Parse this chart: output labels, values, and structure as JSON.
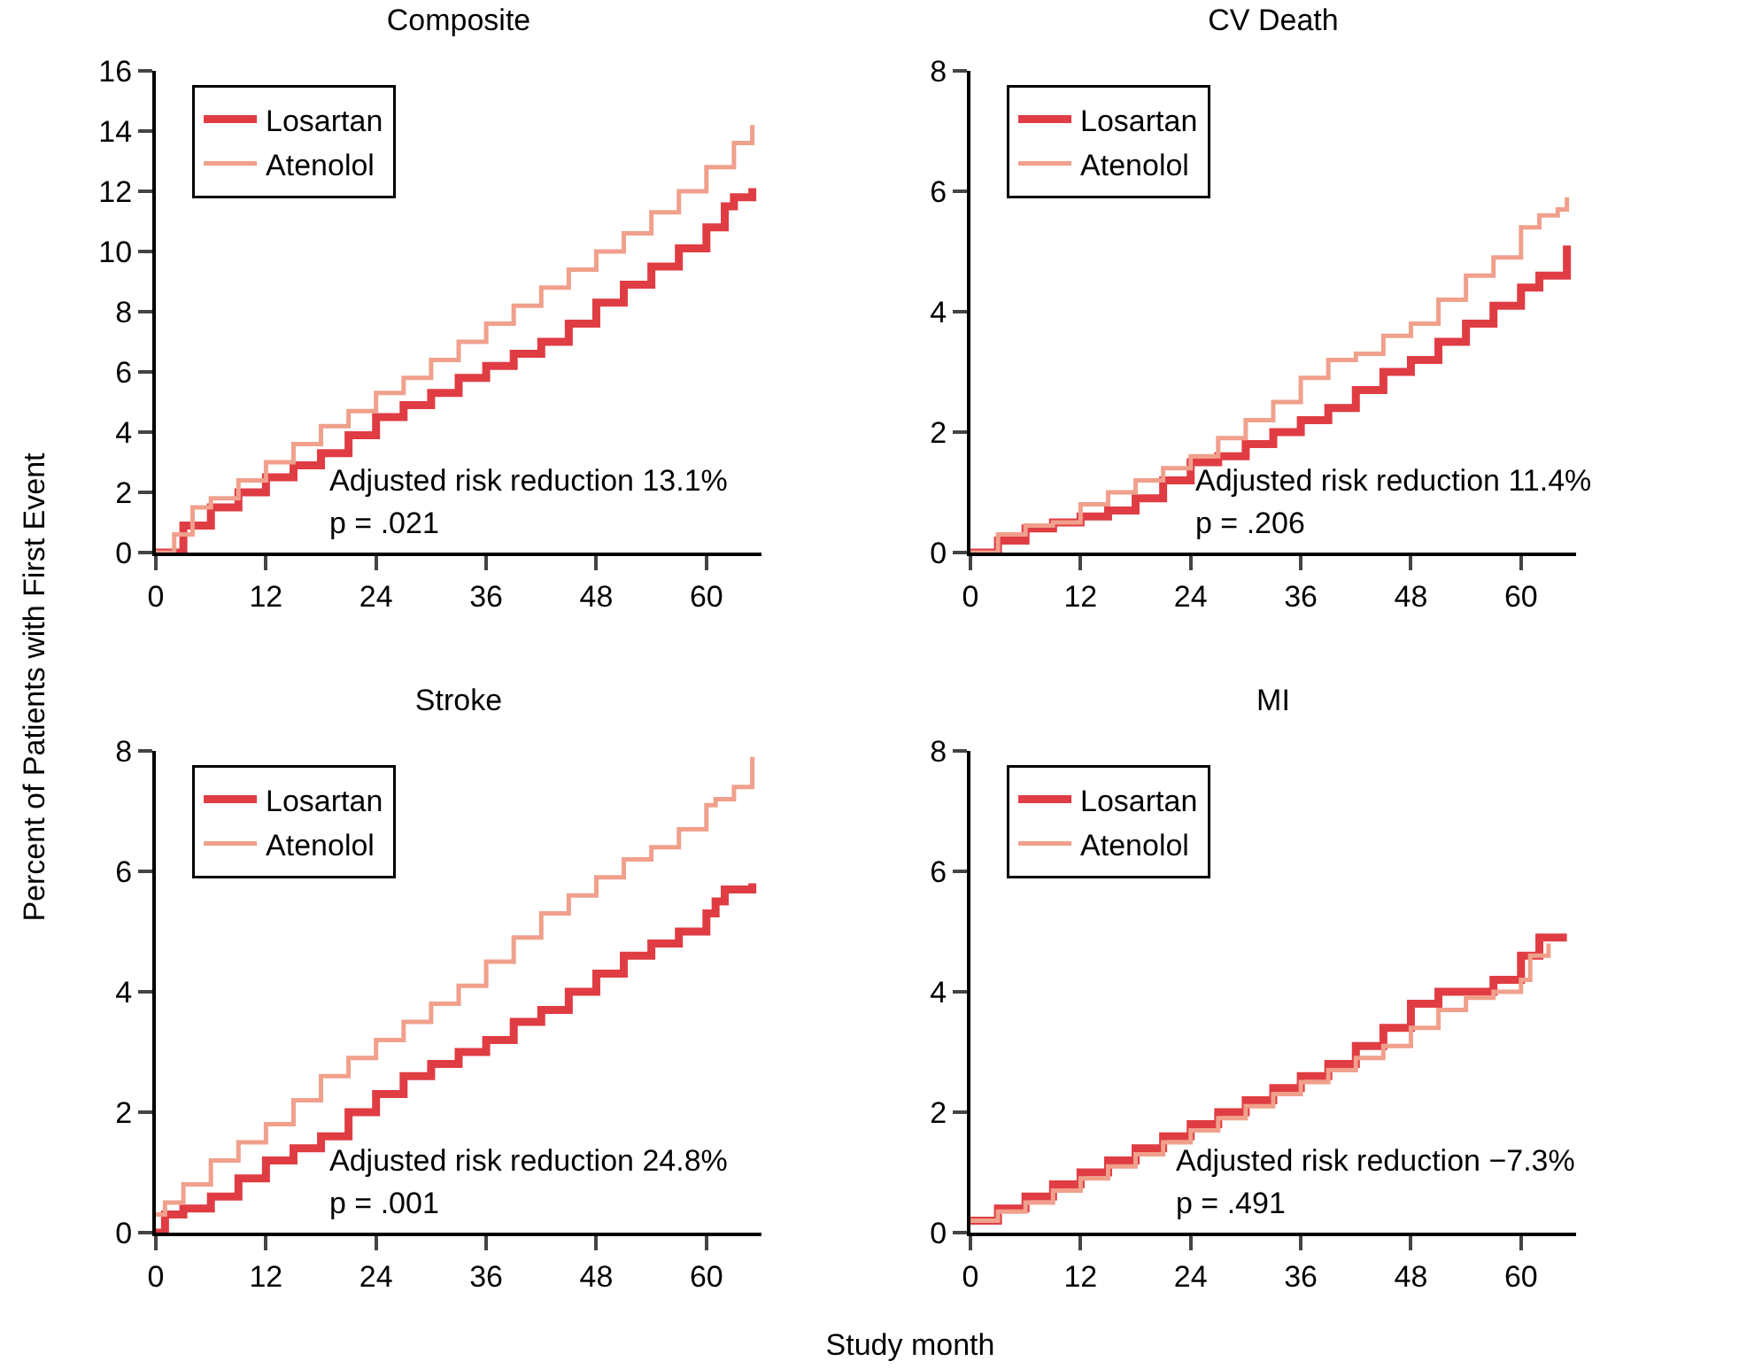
{
  "chart_data": [
    {
      "type": "step",
      "title": "Composite",
      "ylabel": "Percent of Patients with First Event",
      "xlim": [
        0,
        66
      ],
      "xticks": [
        0,
        12,
        24,
        36,
        48,
        60
      ],
      "ylim": [
        0,
        16
      ],
      "yticks": [
        0,
        2,
        4,
        6,
        8,
        10,
        12,
        14,
        16
      ],
      "grid": false,
      "legend": "top left",
      "annotations": [
        "Adjusted risk reduction 13.1%",
        "p = .021"
      ],
      "series": [
        {
          "name": "Losartan",
          "color": "#e03c44",
          "x": [
            0,
            3,
            6,
            9,
            12,
            15,
            18,
            21,
            24,
            27,
            30,
            33,
            36,
            39,
            42,
            45,
            48,
            51,
            54,
            57,
            60,
            62,
            63,
            65
          ],
          "values": [
            0,
            0.9,
            1.5,
            2.0,
            2.5,
            2.9,
            3.3,
            3.9,
            4.5,
            4.9,
            5.3,
            5.8,
            6.2,
            6.6,
            7.0,
            7.6,
            8.3,
            8.9,
            9.5,
            10.1,
            10.8,
            11.5,
            11.8,
            12.1
          ]
        },
        {
          "name": "Atenolol",
          "color": "#f0a08c",
          "x": [
            0,
            2,
            4,
            6,
            9,
            12,
            15,
            18,
            21,
            24,
            27,
            30,
            33,
            36,
            39,
            42,
            45,
            48,
            51,
            54,
            57,
            60,
            63,
            65
          ],
          "values": [
            0,
            0.6,
            1.5,
            1.8,
            2.4,
            3.0,
            3.6,
            4.2,
            4.7,
            5.3,
            5.8,
            6.4,
            7.0,
            7.6,
            8.2,
            8.8,
            9.4,
            10.0,
            10.6,
            11.3,
            12.0,
            12.8,
            13.6,
            14.2
          ]
        }
      ]
    },
    {
      "type": "step",
      "title": "CV Death",
      "xlim": [
        0,
        66
      ],
      "xticks": [
        0,
        12,
        24,
        36,
        48,
        60
      ],
      "ylim": [
        0,
        8
      ],
      "yticks": [
        0,
        2,
        4,
        6,
        8
      ],
      "grid": false,
      "legend": "top left",
      "annotations": [
        "Adjusted risk reduction 11.4%",
        "p = .206"
      ],
      "series": [
        {
          "name": "Losartan",
          "color": "#e03c44",
          "x": [
            0,
            3,
            6,
            9,
            12,
            15,
            18,
            21,
            24,
            27,
            30,
            33,
            36,
            39,
            42,
            45,
            48,
            51,
            54,
            57,
            60,
            62,
            64,
            65
          ],
          "values": [
            0,
            0.2,
            0.4,
            0.5,
            0.6,
            0.7,
            0.9,
            1.2,
            1.5,
            1.6,
            1.8,
            2.0,
            2.2,
            2.4,
            2.7,
            3.0,
            3.2,
            3.5,
            3.8,
            4.1,
            4.4,
            4.6,
            4.6,
            5.1
          ]
        },
        {
          "name": "Atenolol",
          "color": "#f0a08c",
          "x": [
            0,
            3,
            6,
            9,
            12,
            15,
            18,
            21,
            24,
            27,
            30,
            33,
            36,
            39,
            42,
            45,
            48,
            51,
            54,
            57,
            60,
            62,
            64,
            65
          ],
          "values": [
            0,
            0.3,
            0.45,
            0.5,
            0.8,
            1.0,
            1.2,
            1.4,
            1.6,
            1.9,
            2.2,
            2.5,
            2.9,
            3.2,
            3.3,
            3.6,
            3.8,
            4.2,
            4.6,
            4.9,
            5.4,
            5.6,
            5.7,
            5.9
          ]
        }
      ]
    },
    {
      "type": "step",
      "title": "Stroke",
      "xlim": [
        0,
        66
      ],
      "xticks": [
        0,
        12,
        24,
        36,
        48,
        60
      ],
      "ylim": [
        0,
        8
      ],
      "yticks": [
        0,
        2,
        4,
        6,
        8
      ],
      "grid": false,
      "legend": "top left",
      "annotations": [
        "Adjusted risk reduction 24.8%",
        "p = .001"
      ],
      "series": [
        {
          "name": "Losartan",
          "color": "#e03c44",
          "x": [
            0,
            1,
            3,
            6,
            9,
            12,
            15,
            18,
            21,
            24,
            27,
            30,
            33,
            36,
            39,
            42,
            45,
            48,
            51,
            54,
            57,
            60,
            61,
            62,
            65
          ],
          "values": [
            0,
            0.3,
            0.4,
            0.6,
            0.9,
            1.2,
            1.4,
            1.6,
            2.0,
            2.3,
            2.6,
            2.8,
            3.0,
            3.2,
            3.5,
            3.7,
            4.0,
            4.3,
            4.6,
            4.8,
            5.0,
            5.3,
            5.5,
            5.7,
            5.8
          ]
        },
        {
          "name": "Atenolol",
          "color": "#f0a08c",
          "x": [
            0,
            1,
            3,
            6,
            9,
            12,
            15,
            18,
            21,
            24,
            27,
            30,
            33,
            36,
            39,
            42,
            45,
            48,
            51,
            54,
            57,
            60,
            61,
            63,
            65
          ],
          "values": [
            0.3,
            0.5,
            0.8,
            1.2,
            1.5,
            1.8,
            2.2,
            2.6,
            2.9,
            3.2,
            3.5,
            3.8,
            4.1,
            4.5,
            4.9,
            5.3,
            5.6,
            5.9,
            6.2,
            6.4,
            6.7,
            7.1,
            7.2,
            7.4,
            7.9
          ]
        }
      ]
    },
    {
      "type": "step",
      "title": "MI",
      "xlabel": "Study month",
      "xlim": [
        0,
        66
      ],
      "xticks": [
        0,
        12,
        24,
        36,
        48,
        60
      ],
      "ylim": [
        0,
        8
      ],
      "yticks": [
        0,
        2,
        4,
        6,
        8
      ],
      "grid": false,
      "legend": "top left",
      "annotations": [
        "Adjusted risk reduction −7.3%",
        "p = .491"
      ],
      "series": [
        {
          "name": "Losartan",
          "color": "#e03c44",
          "x": [
            0,
            3,
            6,
            9,
            12,
            15,
            18,
            21,
            24,
            27,
            30,
            33,
            36,
            39,
            42,
            45,
            48,
            51,
            54,
            57,
            60,
            62,
            65
          ],
          "values": [
            0.2,
            0.4,
            0.6,
            0.8,
            1.0,
            1.2,
            1.4,
            1.6,
            1.8,
            2.0,
            2.2,
            2.4,
            2.6,
            2.8,
            3.1,
            3.4,
            3.8,
            4.0,
            4.0,
            4.2,
            4.6,
            4.9,
            4.9
          ]
        },
        {
          "name": "Atenolol",
          "color": "#f0a08c",
          "x": [
            0,
            3,
            6,
            9,
            12,
            15,
            18,
            21,
            24,
            27,
            30,
            33,
            36,
            39,
            42,
            45,
            48,
            51,
            54,
            57,
            60,
            61,
            63
          ],
          "values": [
            0.2,
            0.35,
            0.5,
            0.7,
            0.9,
            1.1,
            1.3,
            1.5,
            1.7,
            1.9,
            2.1,
            2.3,
            2.5,
            2.7,
            2.9,
            3.1,
            3.4,
            3.7,
            3.9,
            4.0,
            4.2,
            4.6,
            4.8
          ]
        }
      ]
    }
  ]
}
